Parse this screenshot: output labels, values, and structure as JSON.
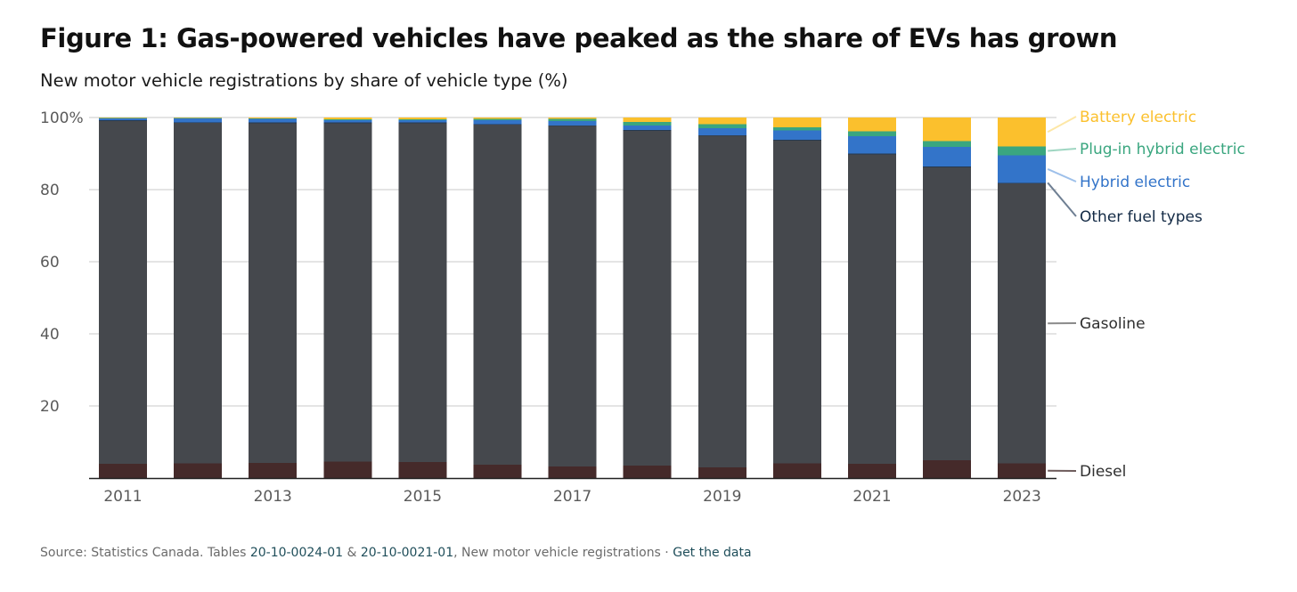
{
  "title": "Figure 1: Gas-powered vehicles have peaked as the share of EVs has grown",
  "subtitle": "New motor vehicle registrations by share of vehicle type (%)",
  "source": {
    "prefix": "Source: Statistics Canada. Tables ",
    "table1": "20-10-0024-01",
    "amp": " & ",
    "table2": "20-10-0021-01",
    "suffix": ", New motor vehicle registrations · ",
    "data_link": "Get the data"
  },
  "colors": {
    "diesel": "#452a2a",
    "gasoline": "#45484d",
    "other": "#253950",
    "hybrid": "#3374c9",
    "phev": "#3aa67f",
    "battery": "#fbc02d",
    "label_other": "#132a45",
    "label_gasoline": "#2f2f2f",
    "label_diesel": "#2f2f2f",
    "grid": "#c9c9c9",
    "tick": "#5a5a5a"
  },
  "chart_data": {
    "type": "bar",
    "stacked": true,
    "years": [
      2011,
      2012,
      2013,
      2014,
      2015,
      2016,
      2017,
      2018,
      2019,
      2020,
      2021,
      2022,
      2023
    ],
    "x_tick_labels": [
      "2011",
      "",
      "2013",
      "",
      "2015",
      "",
      "2017",
      "",
      "2019",
      "",
      "2021",
      "",
      "2023"
    ],
    "y_ticks": [
      {
        "value": 100,
        "label": "100%"
      },
      {
        "value": 80,
        "label": "80"
      },
      {
        "value": 60,
        "label": "60"
      },
      {
        "value": 40,
        "label": "40"
      },
      {
        "value": 20,
        "label": "20"
      }
    ],
    "ylim": [
      0,
      100
    ],
    "grid": true,
    "legend": "right-side direct labels",
    "series": [
      {
        "key": "diesel",
        "name": "Diesel",
        "values": [
          4.0,
          4.1,
          4.2,
          4.6,
          4.4,
          3.7,
          3.2,
          3.5,
          3.0,
          4.1,
          3.9,
          4.9,
          4.1
        ]
      },
      {
        "key": "gasoline",
        "name": "Gasoline",
        "values": [
          95.0,
          94.4,
          94.2,
          93.8,
          94.0,
          94.3,
          94.4,
          92.8,
          91.9,
          89.5,
          85.9,
          81.3,
          77.6
        ]
      },
      {
        "key": "other",
        "name": "Other fuel types",
        "values": [
          0.2,
          0.2,
          0.2,
          0.2,
          0.2,
          0.2,
          0.2,
          0.2,
          0.2,
          0.2,
          0.2,
          0.2,
          0.2
        ]
      },
      {
        "key": "hybrid",
        "name": "Hybrid electric",
        "values": [
          0.6,
          1.1,
          1.0,
          0.7,
          0.6,
          1.1,
          1.2,
          1.3,
          1.9,
          2.6,
          4.8,
          5.5,
          7.6
        ]
      },
      {
        "key": "phev",
        "name": "Plug-in hybrid electric",
        "values": [
          0.1,
          0.1,
          0.2,
          0.2,
          0.3,
          0.3,
          0.6,
          1.0,
          1.2,
          0.9,
          1.4,
          1.5,
          2.5
        ]
      },
      {
        "key": "battery",
        "name": "Battery electric",
        "values": [
          0.1,
          0.1,
          0.2,
          0.5,
          0.5,
          0.4,
          0.4,
          1.2,
          1.8,
          2.7,
          3.8,
          6.6,
          8.0
        ]
      }
    ]
  }
}
